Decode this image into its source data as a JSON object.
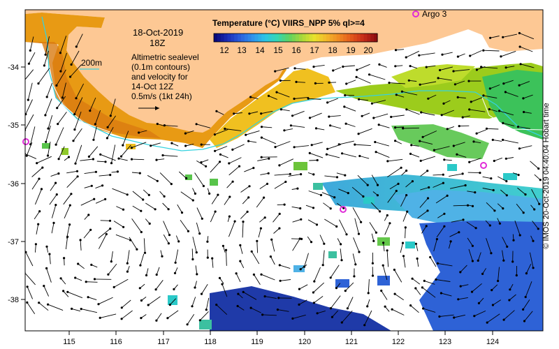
{
  "date_label": "18-Oct-2019",
  "time_label": "18Z",
  "colorbar": {
    "title": "Temperature (°C) VIIRS_NPP 5% ql>=4",
    "ticks": [
      "12",
      "13",
      "14",
      "15",
      "16",
      "17",
      "18",
      "19",
      "20"
    ]
  },
  "contour_label": "200m",
  "info_lines": [
    "Altimetric sealevel",
    "(0.1m contours)",
    "and velocity for",
    "14-Oct 12Z",
    "0.5m/s (1kt 24h)"
  ],
  "float_label": "Argo 3",
  "credit": "© IMOS 20-Oct-2019 04:40:04 Hobart time",
  "axes": {
    "lon_ticks": [
      "115",
      "116",
      "117",
      "118",
      "119",
      "120",
      "121",
      "122",
      "123",
      "124"
    ],
    "lat_ticks": [
      "-34",
      "-35",
      "-36",
      "-37",
      "-38"
    ]
  },
  "colors": {
    "land": "#fdc894",
    "isobath_200m": "#35d2df",
    "argo_marker": "#e02ad8"
  }
}
